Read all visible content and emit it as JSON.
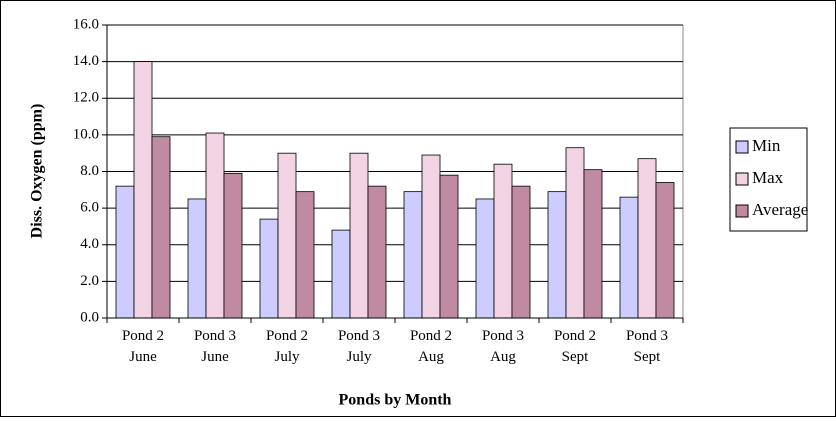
{
  "chart_data": {
    "type": "bar",
    "xlabel": "Ponds by Month",
    "ylabel": "Diss. Oxygen (ppm)",
    "categories": [
      "Pond 2 June",
      "Pond 3 June",
      "Pond 2 July",
      "Pond 3 July",
      "Pond 2 Aug",
      "Pond 3 Aug",
      "Pond 2 Sept",
      "Pond 3 Sept"
    ],
    "series": [
      {
        "name": "Min",
        "color": "#ccccff",
        "values": [
          7.2,
          6.5,
          5.4,
          4.8,
          6.9,
          6.5,
          6.9,
          6.6
        ]
      },
      {
        "name": "Max",
        "color": "#f2d3e3",
        "values": [
          14.0,
          10.1,
          9.0,
          9.0,
          8.9,
          8.4,
          9.3,
          8.7
        ]
      },
      {
        "name": "Average",
        "color": "#c08aa3",
        "values": [
          9.9,
          7.9,
          6.9,
          7.2,
          7.8,
          7.2,
          8.1,
          7.4
        ]
      }
    ],
    "ylim": [
      0,
      16
    ],
    "yticks": [
      {
        "value": 0,
        "label": "0.0"
      },
      {
        "value": 2,
        "label": "2.0"
      },
      {
        "value": 4,
        "label": "4.0"
      },
      {
        "value": 6,
        "label": "6.0"
      },
      {
        "value": 8,
        "label": "8.0"
      },
      {
        "value": 10,
        "label": "10.0"
      },
      {
        "value": 12,
        "label": "12.0"
      },
      {
        "value": 14,
        "label": "14.0"
      },
      {
        "value": 16,
        "label": "16.0"
      }
    ],
    "grid": true,
    "legend": "right"
  }
}
